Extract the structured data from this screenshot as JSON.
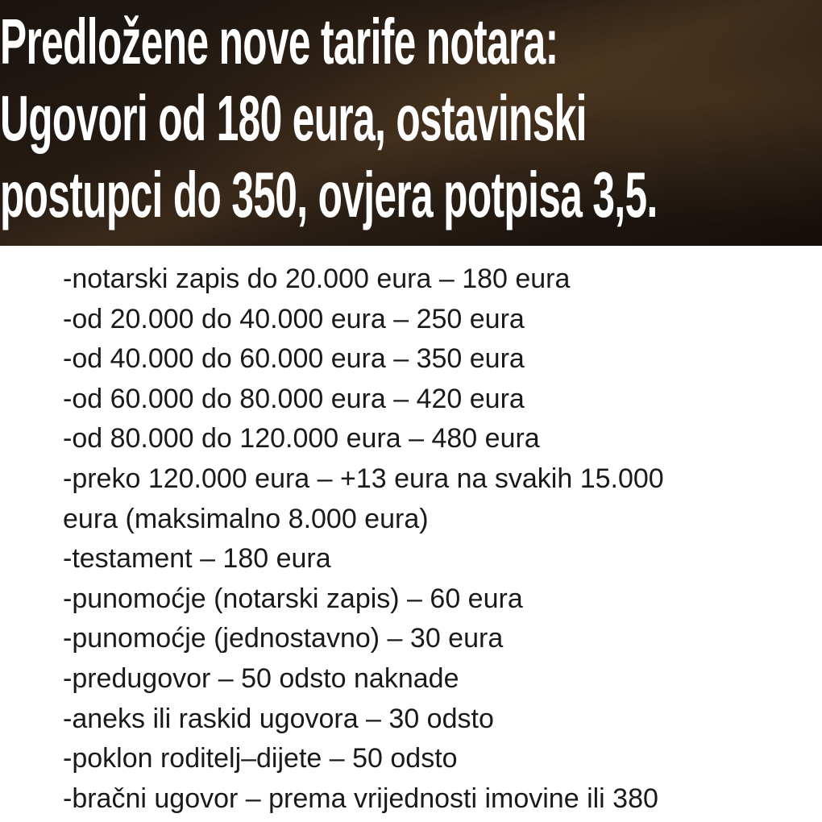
{
  "headline": {
    "lines": [
      "Predložene nove tarife notara:",
      "Ugovori od 180 eura, ostavinski",
      "postupci do 350, ovjera potpisa 3,5."
    ]
  },
  "tariffs": [
    "-notarski zapis do 20.000 eura – 180 eura",
    "-od 20.000 do 40.000 eura – 250 eura",
    "-od 40.000 do 60.000 eura – 350 eura",
    "-od 60.000 do 80.000 eura – 420 eura",
    "-od 80.000 do 120.000 eura – 480 eura",
    "-preko 120.000 eura – +13 eura na svakih 15.000",
    "eura (maksimalno 8.000 eura)",
    "-testament – 180 eura",
    "-punomoćje (notarski zapis) – 60 eura",
    "-punomoćje (jednostavno) – 30 eura",
    "-predugovor – 50 odsto naknade",
    "-aneks ili raskid ugovora – 30 odsto",
    "-poklon roditelj–dijete – 50 odsto",
    "-bračni ugovor – prema vrijednosti imovine ili 380"
  ]
}
